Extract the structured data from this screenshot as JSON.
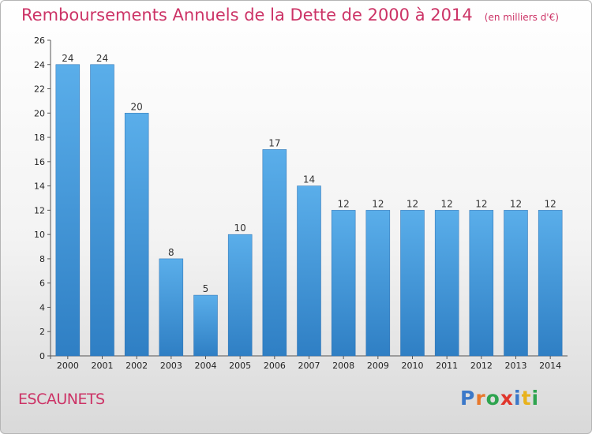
{
  "chart_data": {
    "type": "bar",
    "title": "Remboursements Annuels de la Dette de 2000 à 2014",
    "unit": "(en milliers d'€)",
    "categories": [
      "2000",
      "2001",
      "2002",
      "2003",
      "2004",
      "2005",
      "2006",
      "2007",
      "2008",
      "2009",
      "2010",
      "2011",
      "2012",
      "2013",
      "2014"
    ],
    "values": [
      24,
      24,
      20,
      8,
      5,
      10,
      17,
      14,
      12,
      12,
      12,
      12,
      12,
      12,
      12
    ],
    "ylim": [
      0,
      26
    ],
    "yticks": [
      0,
      2,
      4,
      6,
      8,
      10,
      12,
      14,
      16,
      18,
      20,
      22,
      24,
      26
    ],
    "grid": false,
    "bar_color": "#3a8fd6",
    "title_color": "#cc3366"
  },
  "commune": "ESCAUNETS",
  "logo": {
    "letters": [
      "P",
      "r",
      "o",
      "x",
      "i",
      "t",
      "i"
    ],
    "colors": [
      "#3a78c9",
      "#e8782c",
      "#2ea44f",
      "#e0362c",
      "#3a78c9",
      "#e8b21c",
      "#2ea44f"
    ]
  }
}
